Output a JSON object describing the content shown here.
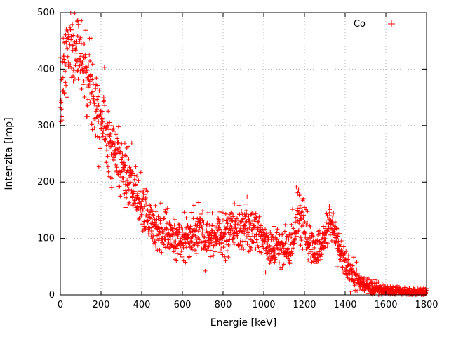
{
  "chart_data": {
    "type": "scatter",
    "title": "",
    "xlabel": "Energie [keV]",
    "ylabel": "Intenzita [Imp]",
    "xlim": [
      0,
      1800
    ],
    "ylim": [
      0,
      500
    ],
    "xticks": [
      0,
      200,
      400,
      600,
      800,
      1000,
      1200,
      1400,
      1600,
      1800
    ],
    "yticks": [
      0,
      100,
      200,
      300,
      400,
      500
    ],
    "grid": true,
    "legend_position": "top-right",
    "series": [
      {
        "name": "Co",
        "marker": "plus",
        "color": "#ff0000",
        "description": "Co-60 gamma spectrum: high low-energy continuum decreasing into Compton plateau (~100 Imp between 600-1000 keV), photopeaks at ~1173 keV (~150 Imp) and ~1332 keV (~130 Imp), falling to ~5 Imp by 1800 keV",
        "envelope": [
          [
            0,
            330
          ],
          [
            15,
            390
          ],
          [
            35,
            430
          ],
          [
            60,
            445
          ],
          [
            90,
            435
          ],
          [
            120,
            408
          ],
          [
            150,
            372
          ],
          [
            200,
            318
          ],
          [
            250,
            268
          ],
          [
            300,
            228
          ],
          [
            350,
            190
          ],
          [
            400,
            156
          ],
          [
            450,
            130
          ],
          [
            500,
            113
          ],
          [
            550,
            102
          ],
          [
            600,
            97
          ],
          [
            640,
            100
          ],
          [
            680,
            114
          ],
          [
            705,
            112
          ],
          [
            745,
            103
          ],
          [
            800,
            108
          ],
          [
            850,
            111
          ],
          [
            900,
            113
          ],
          [
            940,
            119
          ],
          [
            980,
            107
          ],
          [
            1020,
            92
          ],
          [
            1060,
            82
          ],
          [
            1100,
            77
          ],
          [
            1130,
            85
          ],
          [
            1155,
            120
          ],
          [
            1173,
            150
          ],
          [
            1195,
            128
          ],
          [
            1225,
            93
          ],
          [
            1255,
            80
          ],
          [
            1285,
            90
          ],
          [
            1310,
            114
          ],
          [
            1332,
            131
          ],
          [
            1355,
            108
          ],
          [
            1380,
            74
          ],
          [
            1410,
            50
          ],
          [
            1440,
            33
          ],
          [
            1470,
            22
          ],
          [
            1500,
            15
          ],
          [
            1550,
            11
          ],
          [
            1600,
            8
          ],
          [
            1650,
            7
          ],
          [
            1700,
            6
          ],
          [
            1800,
            5
          ]
        ],
        "noise_sigma_scale": 1.8,
        "points_step_keV": 1,
        "seed": 7
      }
    ]
  }
}
